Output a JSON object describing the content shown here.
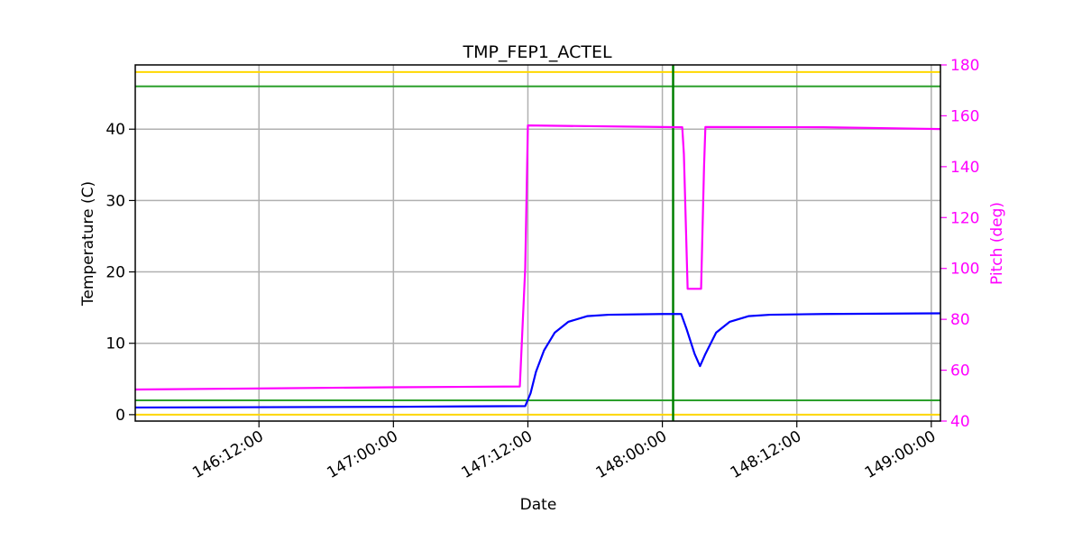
{
  "chart_data": {
    "type": "line",
    "title": "TMP_FEP1_ACTEL",
    "xlabel": "Date",
    "ylabel": "Temperature (C)",
    "y2label": "Pitch (deg)",
    "xlim": [
      146.04,
      149.034
    ],
    "ylim": [
      -0.9,
      49
    ],
    "y2lim": [
      40,
      180
    ],
    "xticks": [
      {
        "value": 146.5,
        "label": "146:12:00"
      },
      {
        "value": 147.0,
        "label": "147:00:00"
      },
      {
        "value": 147.5,
        "label": "147:12:00"
      },
      {
        "value": 148.0,
        "label": "148:00:00"
      },
      {
        "value": 148.5,
        "label": "148:12:00"
      },
      {
        "value": 149.0,
        "label": "149:00:00"
      }
    ],
    "yticks": [
      0,
      10,
      20,
      30,
      40
    ],
    "y2ticks": [
      40,
      60,
      80,
      100,
      120,
      140,
      160,
      180
    ],
    "grid": true,
    "y2color": "#ff00ff",
    "hlines": [
      {
        "value": 48,
        "color": "#ffd700"
      },
      {
        "value": 46,
        "color": "#2ca02c"
      },
      {
        "value": 2,
        "color": "#2ca02c"
      },
      {
        "value": 0,
        "color": "#ffd700"
      }
    ],
    "vlines": [
      {
        "value": 148.04,
        "color": "#008000"
      }
    ],
    "series": [
      {
        "color": "#ff00ff",
        "axis": "y2",
        "x": [
          146.04,
          147.0,
          147.47,
          147.49,
          147.5,
          148.0,
          148.074,
          148.08,
          148.094,
          148.144,
          148.155,
          148.16,
          148.6,
          149.034
        ],
        "values": [
          52.4,
          53.3,
          53.6,
          100,
          156.2,
          155.6,
          155.5,
          145,
          92,
          92,
          140,
          155.6,
          155.5,
          154.8
        ]
      },
      {
        "color": "#0000ff",
        "x": [
          146.04,
          147.0,
          147.49,
          147.51,
          147.53,
          147.56,
          147.6,
          147.65,
          147.72,
          147.8,
          148.0,
          148.07,
          148.09,
          148.12,
          148.14,
          148.16,
          148.2,
          148.25,
          148.32,
          148.4,
          148.6,
          149.034
        ],
        "values": [
          1.0,
          1.1,
          1.2,
          3,
          6,
          9,
          11.5,
          13,
          13.8,
          14.0,
          14.1,
          14.1,
          12,
          8.5,
          6.8,
          8.5,
          11.5,
          13,
          13.8,
          14.0,
          14.1,
          14.2
        ]
      }
    ]
  }
}
